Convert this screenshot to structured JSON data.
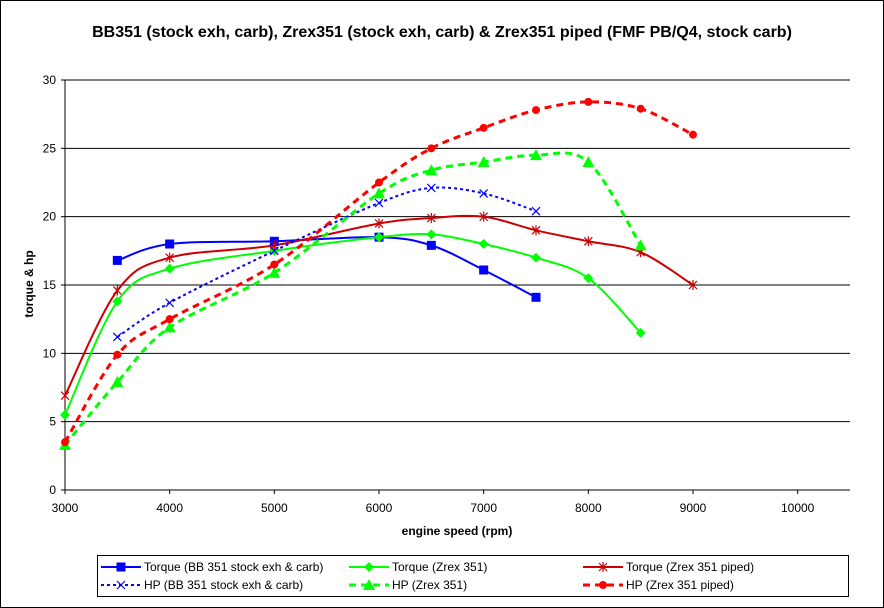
{
  "chart_data": {
    "type": "line",
    "title": "BB351 (stock exh, carb), Zrex351 (stock exh, carb) & Zrex351 piped (FMF PB/Q4, stock carb)",
    "xlabel": "engine speed (rpm)",
    "ylabel": "torque & hp",
    "xlim": [
      3000,
      10500
    ],
    "ylim": [
      0,
      30
    ],
    "xticks": [
      3000,
      4000,
      5000,
      6000,
      7000,
      8000,
      9000,
      10000
    ],
    "yticks": [
      0,
      5,
      10,
      15,
      20,
      25,
      30
    ],
    "grid": "horizontal major gridlines",
    "legend_position": "bottom",
    "series": [
      {
        "name": "Torque (BB 351 stock exh & carb)",
        "color": "#0000ff",
        "dash": "solid",
        "marker": "square",
        "x": [
          3500,
          4000,
          5000,
          6000,
          6500,
          7000,
          7500
        ],
        "y": [
          16.8,
          18.0,
          18.2,
          18.5,
          17.9,
          16.1,
          14.1
        ]
      },
      {
        "name": "Torque (Zrex 351)",
        "color": "#00ff00",
        "dash": "solid",
        "marker": "diamond",
        "x": [
          3000,
          3500,
          4000,
          5000,
          6000,
          6500,
          7000,
          7500,
          8000,
          8500
        ],
        "y": [
          5.5,
          13.8,
          16.2,
          17.5,
          18.5,
          18.7,
          18.0,
          17.0,
          15.5,
          11.5
        ]
      },
      {
        "name": "Torque (Zrex 351 piped)",
        "color": "#cc0000",
        "dash": "solid",
        "marker": "asterisk",
        "x": [
          3000,
          3500,
          4000,
          5000,
          6000,
          6500,
          7000,
          7500,
          8000,
          8500,
          9000
        ],
        "y": [
          6.9,
          14.6,
          17.0,
          17.9,
          19.5,
          19.9,
          20.0,
          19.0,
          18.2,
          17.4,
          15.0
        ]
      },
      {
        "name": "HP (BB 351 stock exh & carb)",
        "color": "#0000ff",
        "dash": "dotted",
        "marker": "x",
        "x": [
          3500,
          4000,
          5000,
          6000,
          6500,
          7000,
          7500
        ],
        "y": [
          11.2,
          13.7,
          17.5,
          21.0,
          22.1,
          21.7,
          20.4
        ]
      },
      {
        "name": "HP (Zrex 351)",
        "color": "#00ff00",
        "dash": "dashed",
        "marker": "triangle",
        "x": [
          3000,
          3500,
          4000,
          5000,
          6000,
          6500,
          7000,
          7500,
          8000,
          8500
        ],
        "y": [
          3.3,
          7.9,
          11.9,
          15.9,
          21.7,
          23.4,
          24.0,
          24.5,
          24.0,
          17.9
        ]
      },
      {
        "name": "HP (Zrex 351 piped)",
        "color": "#ff0000",
        "dash": "dashed",
        "marker": "circle",
        "x": [
          3000,
          3500,
          4000,
          5000,
          6000,
          6500,
          7000,
          7500,
          8000,
          8500,
          9000
        ],
        "y": [
          3.5,
          9.9,
          12.5,
          16.5,
          22.5,
          25.0,
          26.5,
          27.8,
          28.4,
          27.9,
          26.0
        ]
      }
    ]
  }
}
